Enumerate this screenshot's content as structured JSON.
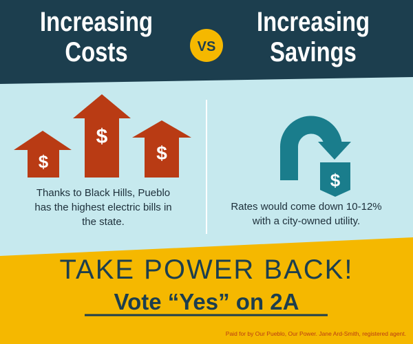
{
  "header": {
    "left_title": [
      "Increasing",
      "Costs"
    ],
    "versus": "VS",
    "right_title": [
      "Increasing",
      "Savings"
    ]
  },
  "icons": {
    "currency_symbol": "$"
  },
  "left_panel": {
    "caption": "Thanks to Black Hills, Pueblo has the highest electric bills in the state."
  },
  "right_panel": {
    "caption": "Rates would come down 10-12% with a city-owned utility."
  },
  "footer": {
    "slogan": "TAKE POWER BACK!",
    "call_to_action": "Vote “Yes” on 2A",
    "disclaimer": "Paid for by Our Pueblo, Our Power. Jane Ard-Smith, registered agent."
  }
}
